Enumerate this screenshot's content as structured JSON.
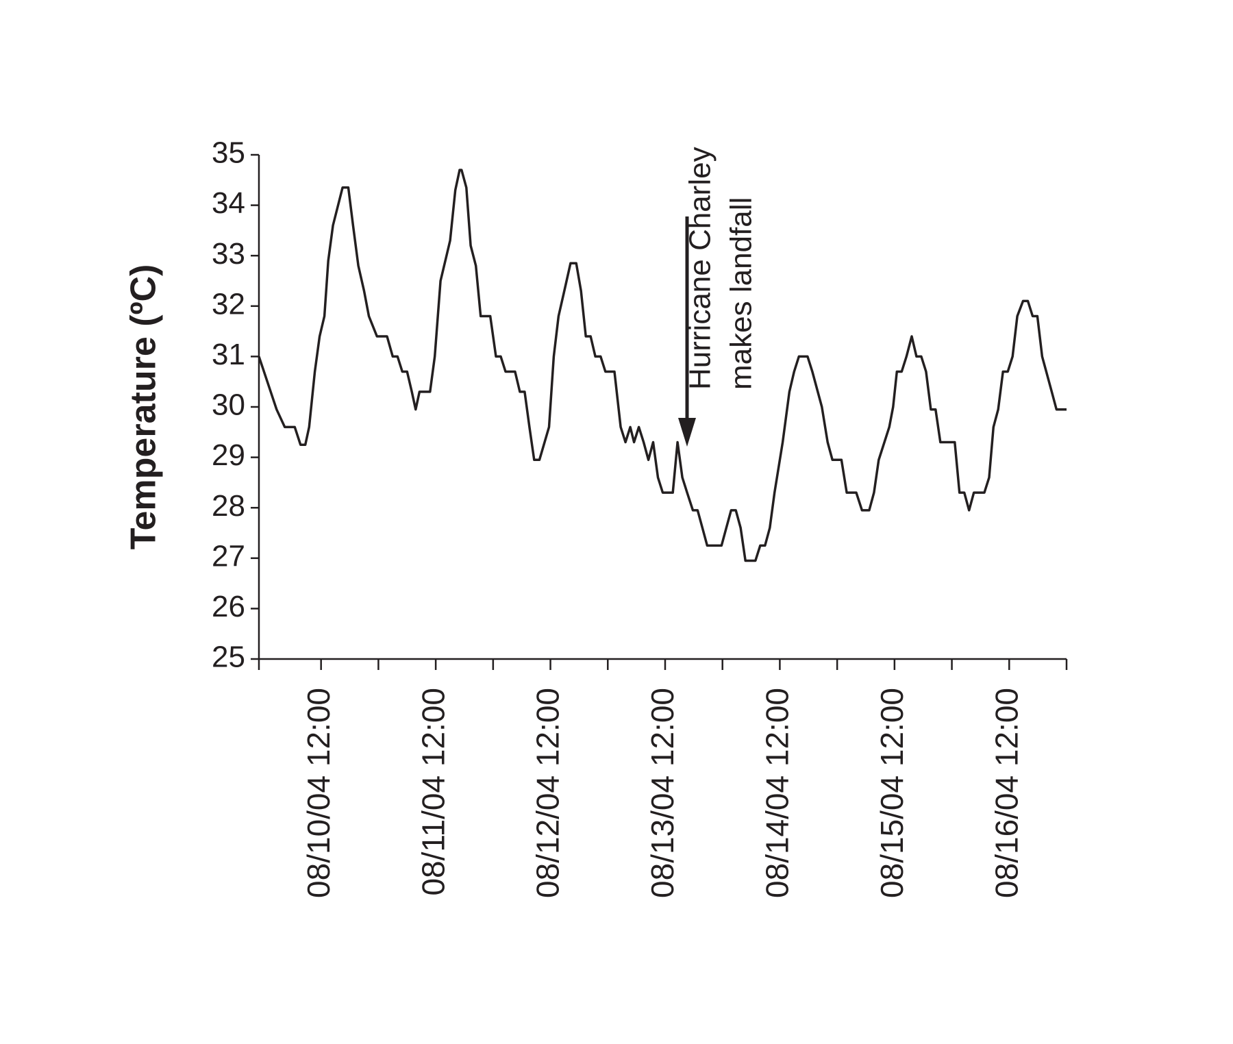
{
  "chart_data": {
    "type": "line",
    "ylabel": "Temperature (ºC)",
    "annotation": [
      "Hurricane Charley",
      "makes landfall"
    ],
    "x": [
      -1,
      2.7,
      4.4,
      6.5,
      7.7,
      8.7,
      9.5,
      10.7,
      11.7,
      12.7,
      13.5,
      14.5,
      16.5,
      17.7,
      18.7,
      19.8,
      21,
      22,
      23.7,
      25.8,
      27,
      28,
      29,
      30,
      31,
      31.8,
      32.6,
      34.8,
      35.8,
      37,
      38,
      39,
      40.1,
      41,
      41.4,
      42.4,
      43.3,
      44.4,
      45.4,
      47.4,
      48.6,
      49.6,
      50.6,
      52.6,
      53.6,
      54.6,
      55.6,
      56.6,
      57.7,
      59.7,
      60.7,
      61.7,
      62.9,
      64.2,
      65.4,
      66.4,
      67.4,
      68.4,
      69.4,
      70.5,
      71.5,
      73.4,
      74.7,
      75.7,
      76.7,
      77.5,
      78.5,
      79.5,
      80.5,
      81.5,
      82.5,
      83.5,
      85.6,
      86.6,
      87.6,
      88.6,
      89.8,
      90.8,
      91.8,
      92.8,
      95.8,
      96.8,
      97.8,
      98.8,
      99.8,
      100.8,
      102.9,
      103.9,
      104.9,
      105.9,
      106.9,
      108.6,
      110,
      111,
      112,
      113.8,
      114.8,
      116.8,
      118,
      119,
      120.9,
      122,
      124,
      125.2,
      126.7,
      127.7,
      128.7,
      130.9,
      131.7,
      132.5,
      133.5,
      134.5,
      135.6,
      136.6,
      137.6,
      138.6,
      139.6,
      140.6,
      141.6,
      144.6,
      145.6,
      146.6,
      147.6,
      148.6,
      150.8,
      151.8,
      152.7,
      153.7,
      154.7,
      155.7,
      156.7,
      157.7,
      158.9,
      159.9,
      160.9,
      161.9,
      162.9,
      164.9,
      165.9,
      168
    ],
    "series": [
      {
        "color": "#231f20",
        "values": [
          31.0,
          29.95,
          29.6,
          29.6,
          29.25,
          29.25,
          29.6,
          30.7,
          31.4,
          31.8,
          32.9,
          33.6,
          34.35,
          34.35,
          33.6,
          32.8,
          32.3,
          31.8,
          31.4,
          31.4,
          31.0,
          31.0,
          30.7,
          30.7,
          30.3,
          29.95,
          30.3,
          30.3,
          31.0,
          32.5,
          32.9,
          33.3,
          34.3,
          34.7,
          34.7,
          34.35,
          33.2,
          32.8,
          31.8,
          31.8,
          31.0,
          31.0,
          30.7,
          30.7,
          30.3,
          30.3,
          29.6,
          28.95,
          28.95,
          29.6,
          31.0,
          31.8,
          32.3,
          32.85,
          32.85,
          32.3,
          31.4,
          31.4,
          31.0,
          31.0,
          30.7,
          30.7,
          29.6,
          29.3,
          29.6,
          29.3,
          29.6,
          29.3,
          28.95,
          29.3,
          28.6,
          28.3,
          28.3,
          29.3,
          28.6,
          28.3,
          27.95,
          27.95,
          27.6,
          27.25,
          27.25,
          27.6,
          27.95,
          27.95,
          27.6,
          26.95,
          26.95,
          27.25,
          27.25,
          27.6,
          28.3,
          29.3,
          30.3,
          30.7,
          31.0,
          31.0,
          30.7,
          30.0,
          29.3,
          28.95,
          28.95,
          28.3,
          28.3,
          27.95,
          27.95,
          28.3,
          28.95,
          29.6,
          30.0,
          30.7,
          30.7,
          31.0,
          31.4,
          31.0,
          31.0,
          30.7,
          29.95,
          29.95,
          29.3,
          29.3,
          28.3,
          28.3,
          27.95,
          28.3,
          28.3,
          28.6,
          29.6,
          29.95,
          30.7,
          30.7,
          31.0,
          31.8,
          32.1,
          32.1,
          31.8,
          31.8,
          31.0,
          30.3,
          29.95,
          29.95
        ]
      }
    ],
    "xlim": [
      -1,
      168
    ],
    "xticks": [
      {
        "value": 12,
        "label": "08/10/04 12:00"
      },
      {
        "value": 36,
        "label": "08/11/04 12:00"
      },
      {
        "value": 60,
        "label": "08/12/04 12:00"
      },
      {
        "value": 84,
        "label": "08/13/04 12:00"
      },
      {
        "value": 108,
        "label": "08/14/04 12:00"
      },
      {
        "value": 132,
        "label": "08/15/04 12:00"
      },
      {
        "value": 156,
        "label": "08/16/04 12:00"
      }
    ],
    "xminorticks": [
      24,
      48,
      72,
      96,
      120,
      144
    ],
    "ylim": [
      25,
      35
    ],
    "yticks": [
      25,
      26,
      27,
      28,
      29,
      30,
      31,
      32,
      33,
      34,
      35
    ],
    "grid": false
  }
}
